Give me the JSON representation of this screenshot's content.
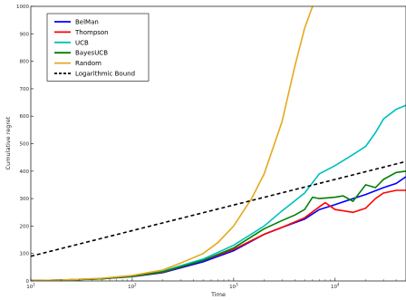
{
  "chart_data": {
    "type": "line",
    "title": "",
    "xlabel": "Time",
    "ylabel": "Cumulative regret",
    "xscale": "log",
    "xlim": [
      10,
      50000
    ],
    "ylim": [
      0,
      1000
    ],
    "x_ticks": [
      {
        "value": 10,
        "base": "10",
        "exp": "1"
      },
      {
        "value": 100,
        "base": "10",
        "exp": "2"
      },
      {
        "value": 1000,
        "base": "10",
        "exp": "3"
      },
      {
        "value": 10000,
        "base": "10",
        "exp": "4"
      }
    ],
    "y_ticks": [
      "0",
      "100",
      "200",
      "300",
      "400",
      "500",
      "600",
      "700",
      "800",
      "900",
      "1000"
    ],
    "grid": false,
    "legend_position": "top-left",
    "series": [
      {
        "name": "BelMan",
        "color": "#0000ff",
        "dash": "solid",
        "points": [
          [
            10,
            1
          ],
          [
            20,
            3
          ],
          [
            50,
            8
          ],
          [
            100,
            16
          ],
          [
            200,
            30
          ],
          [
            500,
            70
          ],
          [
            1000,
            110
          ],
          [
            2000,
            170
          ],
          [
            3000,
            195
          ],
          [
            5000,
            225
          ],
          [
            7000,
            260
          ],
          [
            10000,
            278
          ],
          [
            15000,
            300
          ],
          [
            20000,
            315
          ],
          [
            30000,
            340
          ],
          [
            40000,
            355
          ],
          [
            50000,
            380
          ]
        ]
      },
      {
        "name": "Thompson",
        "color": "#ff0000",
        "dash": "solid",
        "points": [
          [
            10,
            1
          ],
          [
            20,
            3
          ],
          [
            50,
            8
          ],
          [
            100,
            17
          ],
          [
            200,
            32
          ],
          [
            500,
            75
          ],
          [
            1000,
            115
          ],
          [
            2000,
            170
          ],
          [
            3000,
            195
          ],
          [
            5000,
            230
          ],
          [
            7000,
            270
          ],
          [
            8000,
            285
          ],
          [
            10000,
            260
          ],
          [
            15000,
            250
          ],
          [
            20000,
            265
          ],
          [
            25000,
            300
          ],
          [
            30000,
            320
          ],
          [
            40000,
            330
          ],
          [
            50000,
            330
          ]
        ]
      },
      {
        "name": "UCB",
        "color": "#00bfbf",
        "dash": "solid",
        "points": [
          [
            10,
            1
          ],
          [
            20,
            3
          ],
          [
            50,
            9
          ],
          [
            100,
            18
          ],
          [
            200,
            36
          ],
          [
            500,
            80
          ],
          [
            1000,
            130
          ],
          [
            2000,
            200
          ],
          [
            3000,
            255
          ],
          [
            5000,
            320
          ],
          [
            7000,
            390
          ],
          [
            10000,
            420
          ],
          [
            15000,
            460
          ],
          [
            20000,
            490
          ],
          [
            25000,
            540
          ],
          [
            30000,
            590
          ],
          [
            40000,
            625
          ],
          [
            50000,
            640
          ]
        ]
      },
      {
        "name": "BayesUCB",
        "color": "#008000",
        "dash": "solid",
        "points": [
          [
            10,
            1
          ],
          [
            20,
            3
          ],
          [
            50,
            8
          ],
          [
            100,
            17
          ],
          [
            200,
            33
          ],
          [
            500,
            75
          ],
          [
            1000,
            120
          ],
          [
            2000,
            190
          ],
          [
            3000,
            220
          ],
          [
            4000,
            240
          ],
          [
            5000,
            260
          ],
          [
            6000,
            305
          ],
          [
            7000,
            300
          ],
          [
            10000,
            305
          ],
          [
            12000,
            310
          ],
          [
            15000,
            290
          ],
          [
            20000,
            350
          ],
          [
            25000,
            340
          ],
          [
            30000,
            370
          ],
          [
            40000,
            395
          ],
          [
            50000,
            400
          ]
        ]
      },
      {
        "name": "Random",
        "color": "#e5a91c",
        "dash": "solid",
        "points": [
          [
            10,
            1
          ],
          [
            20,
            3
          ],
          [
            50,
            10
          ],
          [
            100,
            20
          ],
          [
            200,
            40
          ],
          [
            300,
            65
          ],
          [
            500,
            100
          ],
          [
            700,
            140
          ],
          [
            1000,
            200
          ],
          [
            1500,
            300
          ],
          [
            2000,
            390
          ],
          [
            3000,
            580
          ],
          [
            4000,
            780
          ],
          [
            5000,
            920
          ],
          [
            6000,
            1000
          ]
        ]
      },
      {
        "name": "Logarithmic Bound",
        "color": "#000000",
        "dash": "dashed",
        "points": [
          [
            10,
            90
          ],
          [
            50000,
            435
          ]
        ]
      }
    ]
  }
}
